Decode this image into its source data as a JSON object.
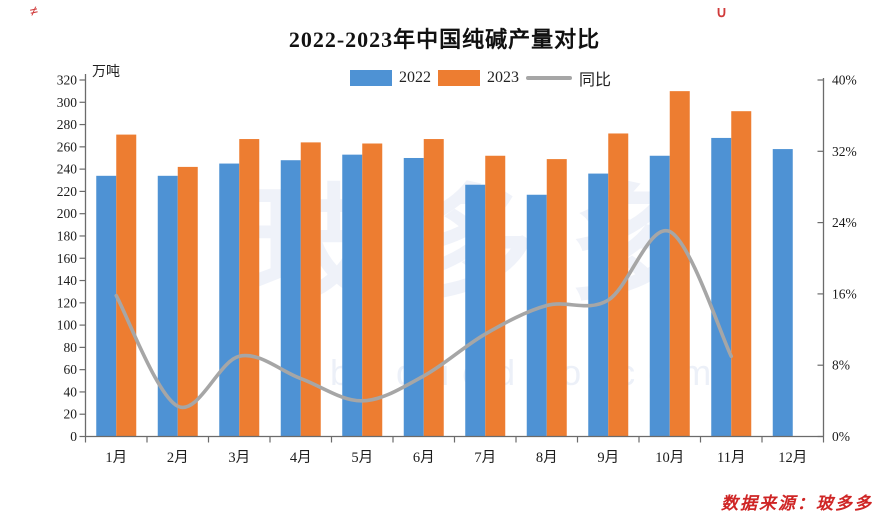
{
  "title": "2022-2023年中国纯碱产量对比",
  "source": {
    "text": "数据来源：玻多多",
    "color": "#cf2525"
  },
  "watermark": {
    "text": "玻多多",
    "subtext": "boduoduo.com"
  },
  "corner_marks": {
    "left": "≠",
    "right": "∪"
  },
  "chart_data": {
    "type": "bar",
    "title": "2022-2023年中国纯碱产量对比",
    "unit_label": "万吨",
    "grid": false,
    "legend_position": "top",
    "categories": [
      "1月",
      "2月",
      "3月",
      "4月",
      "5月",
      "6月",
      "7月",
      "8月",
      "9月",
      "10月",
      "11月",
      "12月"
    ],
    "left_axis": {
      "min": 0,
      "max": 320,
      "step": 20,
      "unit": "万吨"
    },
    "right_axis": {
      "min": 0,
      "max": 40,
      "step": 8,
      "labels": [
        "0%",
        "8%",
        "16%",
        "24%",
        "32%",
        "40%"
      ]
    },
    "series": [
      {
        "name": "2022",
        "type": "bar",
        "axis": "left",
        "color": "#4E92D4",
        "values": [
          234,
          234,
          245,
          248,
          253,
          250,
          226,
          217,
          236,
          252,
          268,
          258
        ]
      },
      {
        "name": "2023",
        "type": "bar",
        "axis": "left",
        "color": "#ED7D31",
        "values": [
          271,
          242,
          267,
          264,
          263,
          267,
          252,
          249,
          272,
          310,
          292,
          null
        ]
      },
      {
        "name": "同比",
        "type": "line",
        "axis": "right",
        "color": "#A6A6A6",
        "values_pct": [
          15.8,
          3.4,
          9.0,
          6.5,
          4.0,
          6.8,
          11.5,
          14.7,
          15.3,
          23.0,
          9.0,
          null
        ]
      }
    ]
  }
}
